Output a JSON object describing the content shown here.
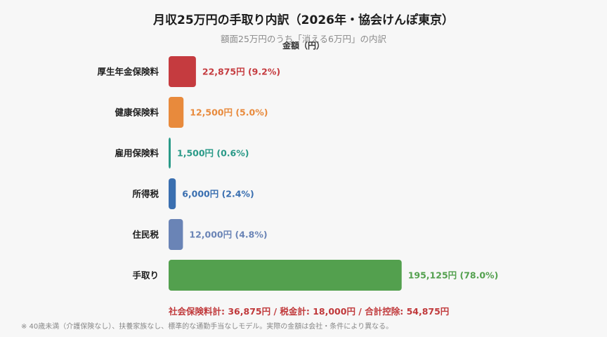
{
  "chart_data": {
    "type": "bar",
    "orientation": "horizontal",
    "title": "月収25万円の手取り内訳（2026年・協会けんぽ東京）",
    "subtitle": "額面25万円のうち「消える6万円」の内訳",
    "xlabel": "金額（円）",
    "ylabel": "",
    "xlim": [
      0,
      250000
    ],
    "categories": [
      "厚生年金保険料",
      "健康保険料",
      "雇用保険料",
      "所得税",
      "住民税",
      "手取り"
    ],
    "values": [
      22875,
      12500,
      1500,
      6000,
      12000,
      195125
    ],
    "value_labels": [
      "22,875円 (9.2%)",
      "12,500円 (5.0%)",
      "1,500円 (0.6%)",
      "6,000円 (2.4%)",
      "12,000円 (4.8%)",
      "195,125円 (78.0%)"
    ],
    "colors": [
      "#c53b3f",
      "#e88a3c",
      "#2a9a88",
      "#3a6fb0",
      "#6a84b6",
      "#53a04e"
    ],
    "grid": false,
    "legend": "none"
  },
  "summary_text": "社会保険料計: 36,875円 / 税金計: 18,000円 / 合計控除: 54,875円",
  "footnote_text": "※ 40歳未満（介護保険なし）、扶養家族なし、標準的な通勤手当なしモデル。実際の金額は会社・条件により異なる。"
}
